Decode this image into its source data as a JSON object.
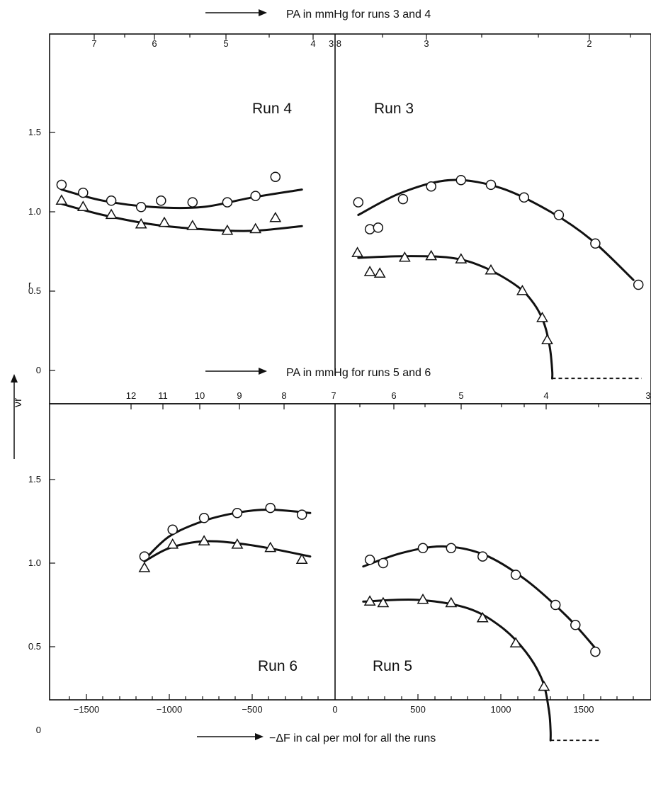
{
  "chart_data": [
    {
      "type": "scatter",
      "panel": "top-left",
      "title": "Run 4",
      "xlim": [
        -1800,
        0
      ],
      "ylim": [
        -0.2,
        2.0
      ],
      "series": [
        {
          "marker": "circle",
          "points": [
            [
              -1650,
              1.17
            ],
            [
              -1520,
              1.12
            ],
            [
              -1350,
              1.07
            ],
            [
              -1170,
              1.03
            ],
            [
              -1050,
              1.07
            ],
            [
              -860,
              1.06
            ],
            [
              -650,
              1.06
            ],
            [
              -480,
              1.1
            ],
            [
              -360,
              1.22
            ]
          ],
          "curve": [
            [
              -1650,
              1.14
            ],
            [
              -1400,
              1.07
            ],
            [
              -1100,
              1.03
            ],
            [
              -800,
              1.03
            ],
            [
              -500,
              1.09
            ],
            [
              -200,
              1.14
            ]
          ]
        },
        {
          "marker": "triangle",
          "points": [
            [
              -1650,
              1.07
            ],
            [
              -1520,
              1.03
            ],
            [
              -1350,
              0.98
            ],
            [
              -1170,
              0.92
            ],
            [
              -1030,
              0.93
            ],
            [
              -860,
              0.91
            ],
            [
              -650,
              0.88
            ],
            [
              -480,
              0.89
            ],
            [
              -360,
              0.96
            ]
          ],
          "curve": [
            [
              -1650,
              1.05
            ],
            [
              -1400,
              0.98
            ],
            [
              -1100,
              0.92
            ],
            [
              -800,
              0.89
            ],
            [
              -500,
              0.88
            ],
            [
              -200,
              0.91
            ]
          ]
        }
      ]
    },
    {
      "type": "scatter",
      "panel": "top-right",
      "title": "Run 3",
      "xlim": [
        0,
        1950
      ],
      "ylim": [
        -0.2,
        2.0
      ],
      "series": [
        {
          "marker": "circle",
          "points": [
            [
              140,
              1.06
            ],
            [
              210,
              0.89
            ],
            [
              260,
              0.9
            ],
            [
              410,
              1.08
            ],
            [
              580,
              1.16
            ],
            [
              760,
              1.2
            ],
            [
              940,
              1.17
            ],
            [
              1140,
              1.09
            ],
            [
              1350,
              0.98
            ],
            [
              1570,
              0.8
            ],
            [
              1830,
              0.54
            ]
          ],
          "curve": [
            [
              140,
              0.98
            ],
            [
              400,
              1.12
            ],
            [
              700,
              1.2
            ],
            [
              1000,
              1.15
            ],
            [
              1300,
              1.0
            ],
            [
              1550,
              0.82
            ],
            [
              1800,
              0.57
            ]
          ]
        },
        {
          "marker": "triangle",
          "points": [
            [
              135,
              0.74
            ],
            [
              210,
              0.62
            ],
            [
              270,
              0.61
            ],
            [
              420,
              0.71
            ],
            [
              580,
              0.72
            ],
            [
              760,
              0.7
            ],
            [
              940,
              0.63
            ],
            [
              1130,
              0.5
            ],
            [
              1250,
              0.33
            ],
            [
              1280,
              0.19
            ]
          ],
          "curve": [
            [
              140,
              0.71
            ],
            [
              400,
              0.72
            ],
            [
              700,
              0.71
            ],
            [
              900,
              0.65
            ],
            [
              1100,
              0.53
            ],
            [
              1200,
              0.42
            ],
            [
              1260,
              0.3
            ],
            [
              1295,
              0.15
            ],
            [
              1310,
              0.0
            ],
            [
              1310,
              -0.05
            ]
          ]
        },
        {
          "style": "dashed",
          "points": [
            [
              1310,
              -0.05
            ],
            [
              1850,
              -0.05
            ]
          ]
        }
      ]
    },
    {
      "type": "scatter",
      "panel": "bottom-left",
      "title": "Run 6",
      "xlim": [
        -1800,
        0
      ],
      "ylim": [
        -0.2,
        2.0
      ],
      "series": [
        {
          "marker": "circle",
          "points": [
            [
              -1150,
              1.04
            ],
            [
              -980,
              1.2
            ],
            [
              -790,
              1.27
            ],
            [
              -590,
              1.3
            ],
            [
              -390,
              1.33
            ],
            [
              -200,
              1.29
            ]
          ],
          "curve": [
            [
              -1150,
              1.02
            ],
            [
              -1000,
              1.16
            ],
            [
              -800,
              1.25
            ],
            [
              -600,
              1.3
            ],
            [
              -400,
              1.32
            ],
            [
              -150,
              1.3
            ]
          ]
        },
        {
          "marker": "triangle",
          "points": [
            [
              -1150,
              0.97
            ],
            [
              -980,
              1.11
            ],
            [
              -790,
              1.13
            ],
            [
              -590,
              1.11
            ],
            [
              -390,
              1.09
            ],
            [
              -200,
              1.02
            ]
          ],
          "curve": [
            [
              -1150,
              1.01
            ],
            [
              -1000,
              1.09
            ],
            [
              -800,
              1.13
            ],
            [
              -600,
              1.12
            ],
            [
              -400,
              1.09
            ],
            [
              -150,
              1.04
            ]
          ]
        }
      ]
    },
    {
      "type": "scatter",
      "panel": "bottom-right",
      "title": "Run 5",
      "xlim": [
        0,
        1950
      ],
      "ylim": [
        -0.2,
        2.0
      ],
      "series": [
        {
          "marker": "circle",
          "points": [
            [
              210,
              1.02
            ],
            [
              290,
              1.0
            ],
            [
              530,
              1.09
            ],
            [
              700,
              1.09
            ],
            [
              890,
              1.04
            ],
            [
              1090,
              0.93
            ],
            [
              1330,
              0.75
            ],
            [
              1450,
              0.63
            ],
            [
              1570,
              0.47
            ]
          ],
          "curve": [
            [
              170,
              0.98
            ],
            [
              400,
              1.06
            ],
            [
              650,
              1.1
            ],
            [
              900,
              1.05
            ],
            [
              1150,
              0.9
            ],
            [
              1400,
              0.68
            ],
            [
              1580,
              0.48
            ]
          ]
        },
        {
          "marker": "triangle",
          "points": [
            [
              210,
              0.77
            ],
            [
              290,
              0.76
            ],
            [
              530,
              0.78
            ],
            [
              700,
              0.76
            ],
            [
              890,
              0.67
            ],
            [
              1090,
              0.52
            ],
            [
              1260,
              0.26
            ]
          ],
          "curve": [
            [
              170,
              0.77
            ],
            [
              500,
              0.78
            ],
            [
              800,
              0.73
            ],
            [
              1000,
              0.62
            ],
            [
              1150,
              0.47
            ],
            [
              1250,
              0.3
            ],
            [
              1290,
              0.12
            ],
            [
              1300,
              0.0
            ],
            [
              1300,
              -0.06
            ]
          ]
        },
        {
          "style": "dashed",
          "points": [
            [
              1300,
              -0.06
            ],
            [
              1600,
              -0.06
            ]
          ]
        }
      ]
    }
  ],
  "labels": {
    "y_axis": "νr",
    "bottom_axis": "−ΔF in cal per mol for all the runs",
    "top_axis_a": "PA in mmHg for runs 3 and 4",
    "top_axis_b": "PA in mmHg for runs 5 and 6",
    "stray_mark": "r"
  },
  "ticks": {
    "y": [
      "1.5",
      "1.0",
      "0.5",
      "0"
    ],
    "bottom_x": [
      "−1500",
      "−1000",
      "−500",
      "0",
      "500",
      "1000",
      "1500"
    ],
    "top_p_a": [
      "7",
      "6",
      "5",
      "4",
      "3.8",
      "3",
      "2"
    ],
    "top_p_b": [
      "12",
      "11",
      "10",
      "9",
      "8",
      "7",
      "6",
      "5",
      "4",
      "3"
    ]
  }
}
